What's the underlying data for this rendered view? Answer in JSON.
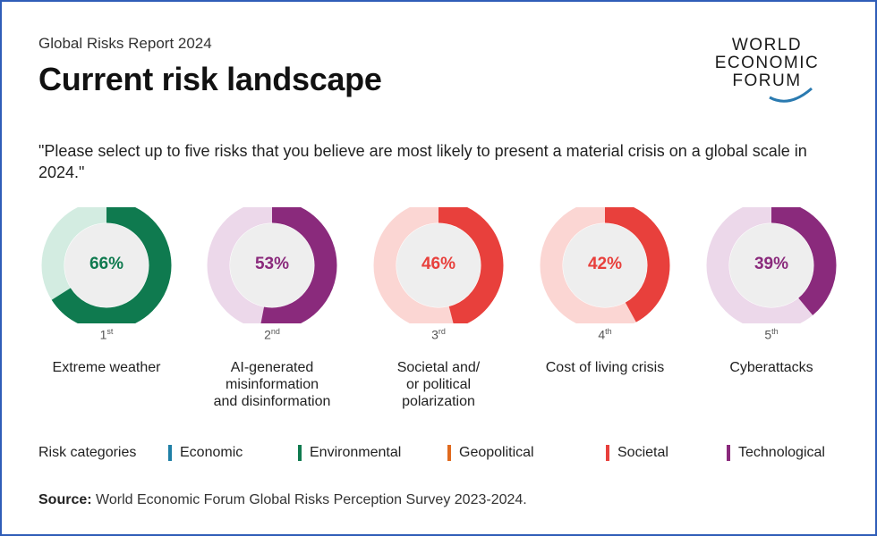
{
  "header": {
    "subtitle": "Global Risks Report 2024",
    "title": "Current risk landscape",
    "logo_lines": [
      "WORLD",
      "ECONOMIC",
      "FORUM"
    ]
  },
  "question": "\"Please select up to five risks that you believe are most likely to present a material crisis on a global scale in 2024.\"",
  "chart_data": {
    "type": "pie",
    "subtype": "donut-set",
    "items": [
      {
        "rank": "1",
        "ordinal": "st",
        "label": "Extreme weather",
        "value": 66,
        "display": "66%",
        "category": "Environmental"
      },
      {
        "rank": "2",
        "ordinal": "nd",
        "label": "AI-generated misinformation and disinformation",
        "value": 53,
        "display": "53%",
        "category": "Technological"
      },
      {
        "rank": "3",
        "ordinal": "rd",
        "label": "Societal and/ or political polarization",
        "value": 46,
        "display": "46%",
        "category": "Societal"
      },
      {
        "rank": "4",
        "ordinal": "th",
        "label": "Cost of living crisis",
        "value": 42,
        "display": "42%",
        "category": "Societal"
      },
      {
        "rank": "5",
        "ordinal": "th",
        "label": "Cyberattacks",
        "value": 39,
        "display": "39%",
        "category": "Technological"
      }
    ],
    "label_lines": [
      [
        "Extreme weather"
      ],
      [
        "AI-generated",
        "misinformation",
        "and disinformation"
      ],
      [
        "Societal and/",
        "or political",
        "polarization"
      ],
      [
        "Cost of living crisis"
      ],
      [
        "Cyberattacks"
      ]
    ]
  },
  "legend": {
    "title": "Risk categories",
    "items": [
      {
        "name": "Economic",
        "color": "#1f7fa6"
      },
      {
        "name": "Environmental",
        "color": "#0f7a4f"
      },
      {
        "name": "Geopolitical",
        "color": "#e06a1e"
      },
      {
        "name": "Societal",
        "color": "#e8403c"
      },
      {
        "name": "Technological",
        "color": "#8a2a7c"
      }
    ]
  },
  "colors": {
    "Environmental": {
      "main": "#0f7a4f",
      "light": "#d3ece1"
    },
    "Technological": {
      "main": "#8a2a7c",
      "light": "#ecd8ea"
    },
    "Societal": {
      "main": "#e8403c",
      "light": "#fbd6d3"
    }
  },
  "source": {
    "label": "Source:",
    "text": "World Economic Forum Global Risks Perception Survey 2023-2024."
  }
}
